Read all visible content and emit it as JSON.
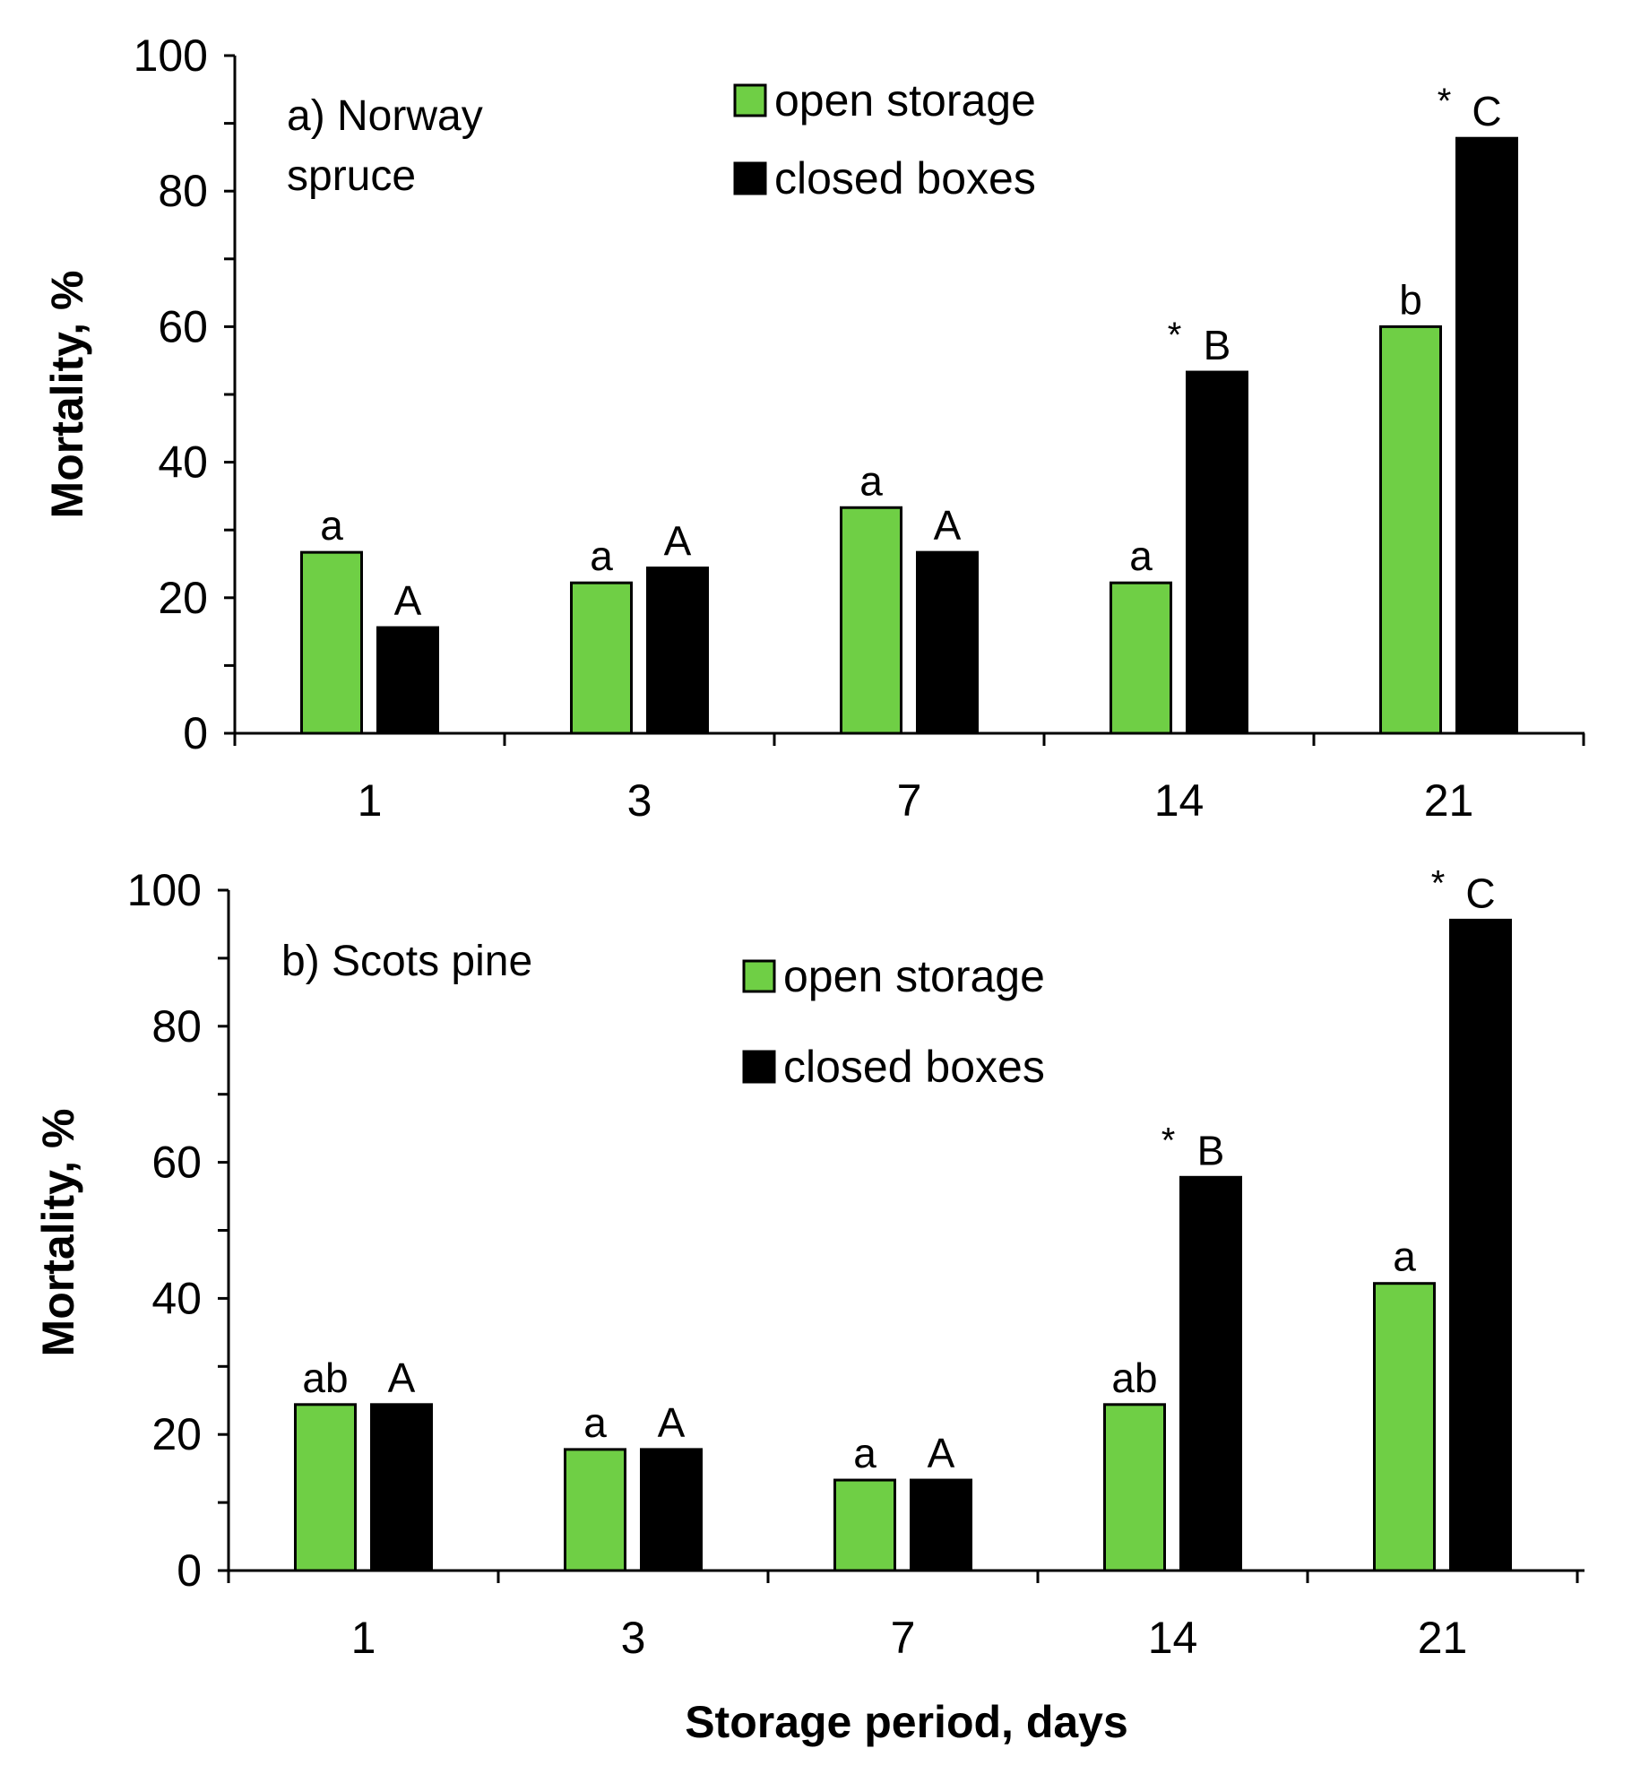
{
  "chart_data": [
    {
      "type": "bar",
      "title": "a) Norway spruce",
      "ylabel": "Mortality, %",
      "xlabel": "",
      "ylim": [
        0,
        100
      ],
      "yticks": [
        0,
        20,
        40,
        60,
        80,
        100
      ],
      "categories": [
        "1",
        "3",
        "7",
        "14",
        "21"
      ],
      "colors": [
        "#6fcf45",
        "#000000"
      ],
      "legend": [
        "open storage",
        "closed boxes"
      ],
      "legend_position": "top-center",
      "series": [
        {
          "name": "open storage",
          "values": [
            26.7,
            22.2,
            33.3,
            22.2,
            60.0
          ],
          "letters": [
            "a",
            "a",
            "a",
            "a",
            "b"
          ],
          "stars": [
            "",
            "",
            "",
            "",
            ""
          ]
        },
        {
          "name": "closed boxes",
          "values": [
            15.6,
            24.4,
            26.7,
            53.3,
            87.8
          ],
          "letters": [
            "A",
            "A",
            "A",
            "B",
            "C"
          ],
          "stars": [
            "",
            "",
            "",
            "*",
            "*"
          ]
        }
      ]
    },
    {
      "type": "bar",
      "title": "b) Scots pine",
      "ylabel": "Mortality, %",
      "xlabel": "Storage period, days",
      "ylim": [
        0,
        100
      ],
      "yticks": [
        0,
        20,
        40,
        60,
        80,
        100
      ],
      "categories": [
        "1",
        "3",
        "7",
        "14",
        "21"
      ],
      "colors": [
        "#6fcf45",
        "#000000"
      ],
      "legend": [
        "open storage",
        "closed boxes"
      ],
      "legend_position": "top-center",
      "series": [
        {
          "name": "open storage",
          "values": [
            24.4,
            17.8,
            13.3,
            24.4,
            42.2
          ],
          "letters": [
            "ab",
            "a",
            "a",
            "ab",
            "a"
          ],
          "stars": [
            "",
            "",
            "",
            "",
            ""
          ]
        },
        {
          "name": "closed boxes",
          "values": [
            24.4,
            17.8,
            13.3,
            57.8,
            95.6
          ],
          "letters": [
            "A",
            "A",
            "A",
            "B",
            "C"
          ],
          "stars": [
            "",
            "",
            "",
            "*",
            "*"
          ]
        }
      ]
    }
  ]
}
